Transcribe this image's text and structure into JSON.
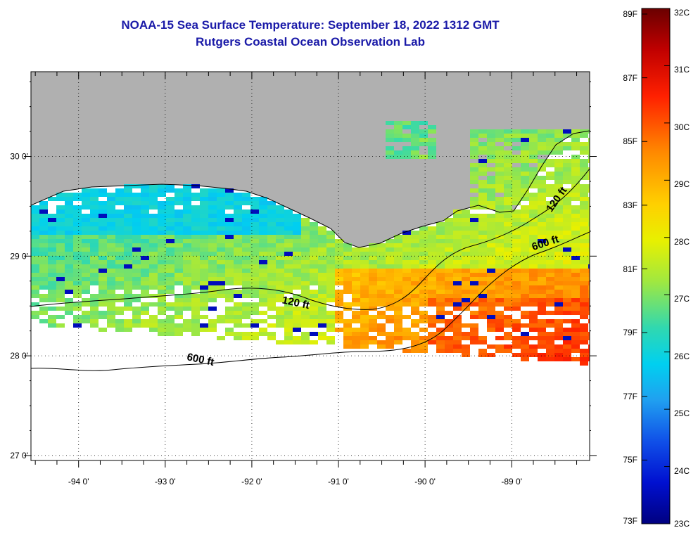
{
  "title": "NOAA-15 Sea Surface Temperature:  September 18, 2022 1312 GMT",
  "subtitle": "Rutgers Coastal Ocean Observation Lab",
  "map": {
    "lon_range": [
      -94.55,
      -88.1
    ],
    "lat_range": [
      26.95,
      30.85
    ],
    "lon_ticks": [
      {
        "value": -94,
        "label": "-94 0'"
      },
      {
        "value": -93,
        "label": "-93 0'"
      },
      {
        "value": -92,
        "label": "-92 0'"
      },
      {
        "value": -91,
        "label": "-91 0'"
      },
      {
        "value": -90,
        "label": "-90 0'"
      },
      {
        "value": -89,
        "label": "-89 0'"
      }
    ],
    "lat_ticks": [
      {
        "value": 30,
        "label": "30 0'"
      },
      {
        "value": 29,
        "label": "29 0'"
      },
      {
        "value": 28,
        "label": "28 0'"
      },
      {
        "value": 27,
        "label": "27 0'"
      }
    ],
    "land_color": "#b0b0b0",
    "contour_labels": [
      {
        "text": "120 ft",
        "lon": -91.5,
        "lat": 28.5,
        "rotate": 12
      },
      {
        "text": "600 ft",
        "lon": -92.6,
        "lat": 27.93,
        "rotate": 12
      },
      {
        "text": "600 ft",
        "lon": -88.6,
        "lat": 29.1,
        "rotate": -18
      },
      {
        "text": "120 ft",
        "lon": -88.45,
        "lat": 29.55,
        "rotate": -55
      }
    ]
  },
  "colorbar": {
    "f_labels": [
      "89F",
      "87F",
      "85F",
      "83F",
      "81F",
      "79F",
      "77F",
      "75F",
      "73F"
    ],
    "c_labels": [
      "32C",
      "31C",
      "30C",
      "29C",
      "28C",
      "27C",
      "26C",
      "25C",
      "24C",
      "23C"
    ],
    "min_c": 23,
    "max_c": 32
  }
}
